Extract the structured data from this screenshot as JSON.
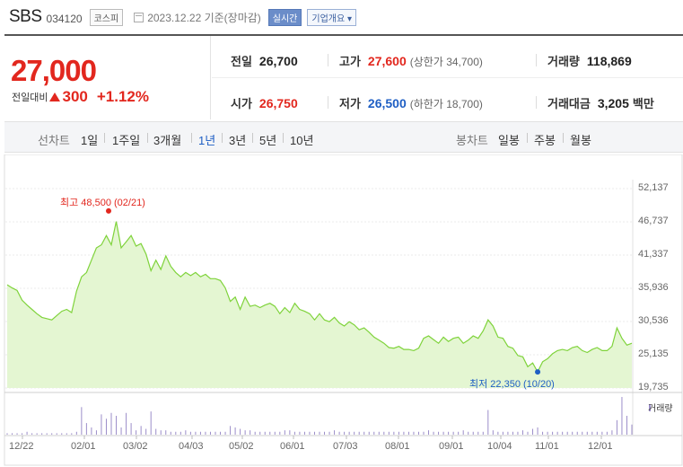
{
  "header": {
    "name": "SBS",
    "code": "034120",
    "market": "코스피",
    "date": "2023.12.22 기준(장마감)",
    "realtime": "실시간",
    "overview": "기업개요 ▾"
  },
  "price": {
    "current": "27,000",
    "change_label": "전일대비",
    "change_amount": "300",
    "change_pct": "+1.12%",
    "prev_label": "전일",
    "prev": "26,700",
    "high_label": "고가",
    "high": "27,600",
    "upper_limit": "(상한가 34,700)",
    "volume_label": "거래량",
    "volume": "118,869",
    "open_label": "시가",
    "open": "26,750",
    "low_label": "저가",
    "low": "26,500",
    "lower_limit": "(하한가 18,700)",
    "amount_label": "거래대금",
    "amount": "3,205",
    "amount_unit": "백만"
  },
  "tabs": {
    "line_title": "선차트",
    "line_periods": [
      "1일",
      "1주일",
      "3개월",
      "1년",
      "3년",
      "5년",
      "10년"
    ],
    "selected_period": "1년",
    "candle_title": "봉차트",
    "candle_periods": [
      "일봉",
      "주봉",
      "월봉"
    ]
  },
  "colors": {
    "up": "#e2271e",
    "down": "#1f5fc4",
    "line": "#7fd33b",
    "fill": "#e4f6d2",
    "volume": "#9b8dc9"
  },
  "chart_data": {
    "type": "area",
    "y_ticks": [
      "52,137",
      "46,737",
      "41,337",
      "35,936",
      "30,536",
      "25,135",
      "19,735"
    ],
    "ylim": [
      19735,
      52137
    ],
    "x_ticks": [
      "12/22",
      "02/01",
      "03/02",
      "04/03",
      "05/02",
      "06/01",
      "07/03",
      "08/01",
      "09/01",
      "10/04",
      "11/01",
      "12/01"
    ],
    "max_label": "최고 48,500 (02/21)",
    "min_label": "최저 22,350 (10/20)",
    "volume_label": "거래량",
    "price_series": [
      36500,
      36000,
      35600,
      34000,
      33200,
      32500,
      31800,
      31200,
      31000,
      30800,
      31500,
      32200,
      32500,
      32000,
      35500,
      37800,
      38500,
      40500,
      42500,
      43000,
      44500,
      43000,
      46800,
      42500,
      43500,
      44500,
      42800,
      43200,
      41500,
      38800,
      40500,
      39000,
      41200,
      39500,
      38500,
      37800,
      38500,
      38000,
      38500,
      37800,
      38200,
      37500,
      37500,
      37200,
      36000,
      33800,
      34500,
      32500,
      34500,
      33000,
      33200,
      32800,
      33200,
      33500,
      33000,
      31800,
      32800,
      32000,
      33500,
      32500,
      32200,
      31800,
      30800,
      31800,
      30800,
      30500,
      31200,
      30300,
      29800,
      30500,
      30000,
      29200,
      29500,
      28800,
      28000,
      27500,
      27000,
      26300,
      26200,
      26500,
      26000,
      26000,
      25800,
      26200,
      27800,
      28200,
      27600,
      27000,
      28000,
      27300,
      27800,
      28000,
      27000,
      27500,
      28200,
      27800,
      29000,
      30800,
      29800,
      28000,
      27800,
      26500,
      26200,
      25000,
      24800,
      23200,
      23800,
      22350,
      24000,
      24500,
      25300,
      25800,
      26000,
      25800,
      26300,
      26500,
      25800,
      25500,
      26000,
      26300,
      25800,
      25800,
      26500,
      29500,
      27800,
      26700,
      27000
    ],
    "volume_series": [
      1,
      1,
      1,
      1,
      2,
      1,
      1,
      1,
      1,
      1,
      1,
      1,
      1,
      1,
      2,
      19,
      8,
      5,
      3,
      14,
      11,
      15,
      13,
      5,
      15,
      8,
      3,
      6,
      4,
      16,
      4,
      3,
      3,
      2,
      2,
      2,
      3,
      2,
      2,
      2,
      2,
      2,
      2,
      2,
      2,
      6,
      5,
      4,
      3,
      3,
      2,
      2,
      2,
      2,
      2,
      2,
      3,
      3,
      2,
      2,
      2,
      2,
      2,
      2,
      2,
      2,
      3,
      2,
      2,
      2,
      2,
      2,
      2,
      2,
      2,
      2,
      2,
      2,
      2,
      2,
      2,
      2,
      2,
      2,
      2,
      3,
      2,
      2,
      2,
      2,
      2,
      2,
      3,
      2,
      2,
      2,
      2,
      17,
      3,
      2,
      2,
      2,
      2,
      2,
      3,
      2,
      4,
      5,
      2,
      2,
      2,
      2,
      2,
      2,
      2,
      2,
      2,
      2,
      2,
      2,
      2,
      2,
      3,
      10,
      26,
      13,
      7
    ],
    "max_value": 48500,
    "min_value": 22350
  }
}
